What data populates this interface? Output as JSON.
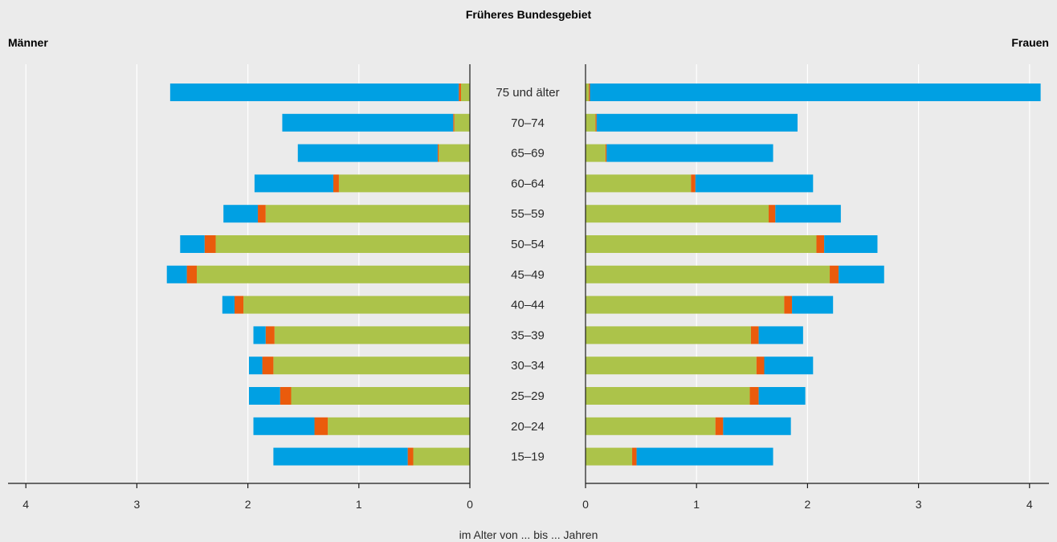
{
  "chart_data": {
    "type": "bar",
    "orientation": "horizontal",
    "layout": "population-pyramid",
    "title": "Früheres Bundesgebiet",
    "xlabel": "im Alter von ... bis ... Jahren",
    "left_label": "Männer",
    "right_label": "Frauen",
    "xlim": [
      0,
      4
    ],
    "xticks": [
      "0",
      "1",
      "2",
      "3",
      "4"
    ],
    "grid": true,
    "categories": [
      "75 und älter",
      "70–74",
      "65–69",
      "60–64",
      "55–59",
      "50–54",
      "45–49",
      "40–44",
      "35–39",
      "30–34",
      "25–29",
      "20–24",
      "15–19"
    ],
    "colors": {
      "green": "#acc34a",
      "orange": "#ea5b0c",
      "blue": "#00a0e3"
    },
    "groups": [
      {
        "name": "Männer",
        "side": "left",
        "series": [
          {
            "color": "green",
            "values": [
              0.08,
              0.14,
              0.28,
              1.18,
              1.84,
              2.29,
              2.46,
              2.04,
              1.76,
              1.77,
              1.61,
              1.28,
              0.51
            ]
          },
          {
            "color": "orange",
            "values": [
              0.02,
              0.01,
              0.01,
              0.05,
              0.07,
              0.1,
              0.09,
              0.08,
              0.08,
              0.1,
              0.1,
              0.12,
              0.05
            ]
          },
          {
            "color": "blue",
            "values": [
              2.6,
              1.54,
              1.26,
              0.71,
              0.31,
              0.22,
              0.18,
              0.11,
              0.11,
              0.12,
              0.28,
              0.55,
              1.21
            ]
          }
        ]
      },
      {
        "name": "Frauen",
        "side": "right",
        "series": [
          {
            "color": "green",
            "values": [
              0.03,
              0.09,
              0.18,
              0.95,
              1.65,
              2.08,
              2.2,
              1.79,
              1.49,
              1.54,
              1.48,
              1.17,
              0.42
            ]
          },
          {
            "color": "orange",
            "values": [
              0.01,
              0.01,
              0.01,
              0.04,
              0.06,
              0.07,
              0.08,
              0.07,
              0.07,
              0.07,
              0.08,
              0.07,
              0.04
            ]
          },
          {
            "color": "blue",
            "values": [
              4.06,
              1.81,
              1.5,
              1.06,
              0.59,
              0.48,
              0.41,
              0.37,
              0.4,
              0.44,
              0.42,
              0.61,
              1.23
            ]
          }
        ]
      }
    ]
  }
}
